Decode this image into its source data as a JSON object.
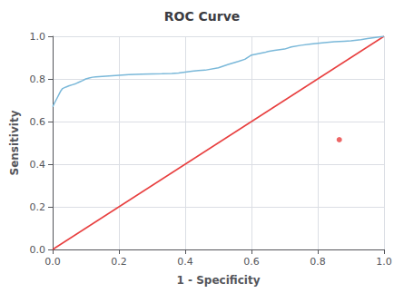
{
  "chart_data": {
    "type": "line",
    "title": "ROC Curve",
    "xlabel": "1 - Specificity",
    "ylabel": "Sensitivity",
    "xlim": [
      0.0,
      1.0
    ],
    "ylim": [
      0.0,
      1.0
    ],
    "xticks": [
      {
        "value": 0.0,
        "label": "0.0"
      },
      0.2,
      0.4,
      0.6,
      0.8,
      {
        "value": 1.0,
        "label": "1.0"
      }
    ],
    "yticks": [
      {
        "value": 0.0,
        "label": "0.0"
      },
      0.2,
      0.4,
      0.6,
      0.8,
      {
        "value": 1.0,
        "label": "1.0"
      }
    ],
    "grid": true,
    "series": [
      {
        "type": "line",
        "color": "#e84040",
        "x": [
          0,
          1
        ],
        "values": [
          0,
          1
        ]
      },
      {
        "type": "line",
        "color": "#7ab8d9",
        "x": [
          0.0,
          0.005,
          0.01,
          0.015,
          0.02,
          0.025,
          0.03,
          0.04,
          0.05,
          0.06,
          0.07,
          0.08,
          0.09,
          0.1,
          0.11,
          0.12,
          0.13,
          0.14,
          0.15,
          0.16,
          0.17,
          0.18,
          0.19,
          0.2,
          0.21,
          0.22,
          0.23,
          0.25,
          0.27,
          0.3,
          0.33,
          0.36,
          0.38,
          0.4,
          0.42,
          0.44,
          0.46,
          0.5,
          0.53,
          0.56,
          0.58,
          0.6,
          0.62,
          0.64,
          0.65,
          0.67,
          0.7,
          0.72,
          0.75,
          0.78,
          0.8,
          0.82,
          0.85,
          0.88,
          0.9,
          0.93,
          0.95,
          0.97,
          1.0
        ],
        "values": [
          0.67,
          0.685,
          0.7,
          0.715,
          0.73,
          0.745,
          0.755,
          0.762,
          0.768,
          0.773,
          0.778,
          0.785,
          0.792,
          0.8,
          0.804,
          0.808,
          0.81,
          0.811,
          0.812,
          0.813,
          0.814,
          0.815,
          0.816,
          0.817,
          0.818,
          0.819,
          0.82,
          0.821,
          0.822,
          0.823,
          0.824,
          0.826,
          0.828,
          0.832,
          0.836,
          0.839,
          0.841,
          0.852,
          0.868,
          0.882,
          0.892,
          0.912,
          0.918,
          0.924,
          0.929,
          0.934,
          0.94,
          0.95,
          0.958,
          0.964,
          0.967,
          0.97,
          0.974,
          0.977,
          0.979,
          0.984,
          0.989,
          0.994,
          1.0
        ]
      },
      {
        "type": "scatter",
        "color": "#e84040",
        "x": [
          0.865
        ],
        "values": [
          0.515
        ]
      }
    ]
  }
}
